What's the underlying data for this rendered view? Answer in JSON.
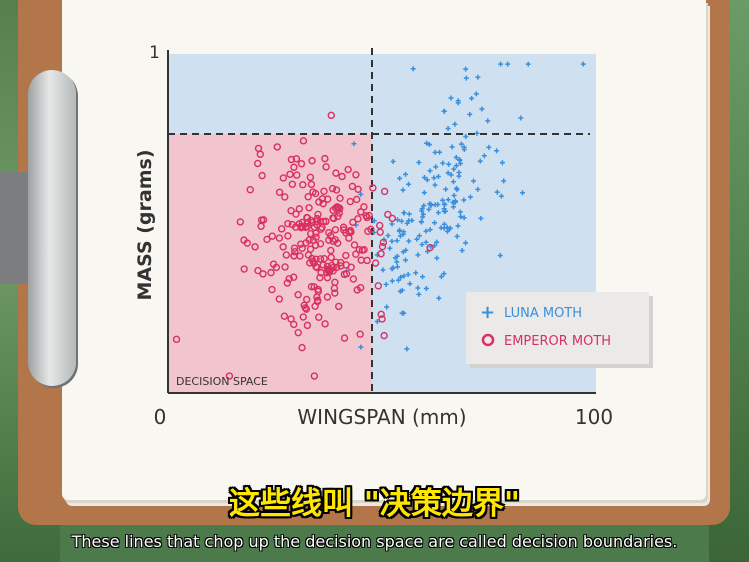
{
  "colors": {
    "luna": "#3a8fdc",
    "emperor": "#d9305f",
    "region_blue": "#cfe0f0",
    "region_red": "#f1c4ce",
    "axis": "#333333"
  },
  "chart_data": {
    "type": "scatter",
    "xlabel": "WINGSPAN (mm)",
    "ylabel": "MASS (grams)",
    "xlim": [
      0,
      100
    ],
    "ylim": [
      0,
      1
    ],
    "x_ticks": [
      "0",
      "100"
    ],
    "y_ticks": [
      "1"
    ],
    "region_label": "DECISION SPACE",
    "boundaries": {
      "vertical_x": 48,
      "horizontal_y": 0.76
    },
    "legend_position": "bottom-right",
    "series": [
      {
        "name": "LUNA MOTH",
        "marker": "plus",
        "center": [
          62,
          0.55
        ],
        "spread": [
          9,
          0.14
        ],
        "count": 190
      },
      {
        "name": "EMPEROR MOTH",
        "marker": "circle",
        "center": [
          36,
          0.45
        ],
        "spread": [
          8,
          0.12
        ],
        "count": 240
      }
    ]
  },
  "subtitles": {
    "chinese": "这些线叫 \"决策边界\"",
    "english": "These lines that chop up the decision space are called decision boundaries."
  }
}
